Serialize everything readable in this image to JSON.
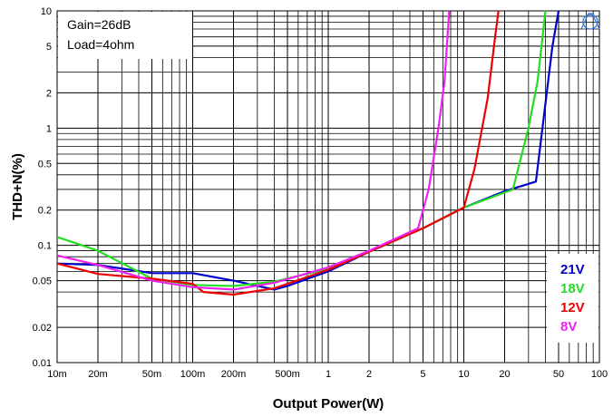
{
  "chart_data": {
    "type": "line",
    "xlabel": "Output Power(W)",
    "ylabel": "THD+N(%)",
    "xscale": "log",
    "yscale": "log",
    "xlim": [
      0.01,
      100
    ],
    "ylim": [
      0.01,
      10
    ],
    "grid": true,
    "legend_placement": "bottom-right",
    "annotations": [
      "Gain=26dB",
      "Load=4ohm"
    ],
    "x_major_ticks": [
      {
        "v": 0.01,
        "label": "10m"
      },
      {
        "v": 0.02,
        "label": "20m"
      },
      {
        "v": 0.05,
        "label": "50m"
      },
      {
        "v": 0.1,
        "label": "100m"
      },
      {
        "v": 0.2,
        "label": "200m"
      },
      {
        "v": 0.5,
        "label": "500m"
      },
      {
        "v": 1,
        "label": "1"
      },
      {
        "v": 2,
        "label": "2"
      },
      {
        "v": 5,
        "label": "5"
      },
      {
        "v": 10,
        "label": "10"
      },
      {
        "v": 20,
        "label": "20"
      },
      {
        "v": 50,
        "label": "50"
      },
      {
        "v": 100,
        "label": "100"
      }
    ],
    "y_major_ticks": [
      {
        "v": 0.01,
        "label": "0.01"
      },
      {
        "v": 0.02,
        "label": "0.02"
      },
      {
        "v": 0.05,
        "label": "0.05"
      },
      {
        "v": 0.1,
        "label": "0.1"
      },
      {
        "v": 0.2,
        "label": "0.2"
      },
      {
        "v": 0.5,
        "label": "0.5"
      },
      {
        "v": 1,
        "label": "1"
      },
      {
        "v": 2,
        "label": "2"
      },
      {
        "v": 5,
        "label": "5"
      },
      {
        "v": 10,
        "label": "10"
      }
    ],
    "series": [
      {
        "name": "21V",
        "color": "#0000cc",
        "points": [
          [
            0.01,
            0.07
          ],
          [
            0.02,
            0.068
          ],
          [
            0.05,
            0.058
          ],
          [
            0.1,
            0.058
          ],
          [
            0.2,
            0.05
          ],
          [
            0.4,
            0.042
          ],
          [
            0.5,
            0.045
          ],
          [
            1,
            0.06
          ],
          [
            2,
            0.088
          ],
          [
            5,
            0.14
          ],
          [
            10,
            0.21
          ],
          [
            20,
            0.29
          ],
          [
            34,
            0.35
          ],
          [
            38,
            1.0
          ],
          [
            45,
            5.0
          ],
          [
            50,
            10.0
          ]
        ]
      },
      {
        "name": "18V",
        "color": "#22dd22",
        "points": [
          [
            0.01,
            0.118
          ],
          [
            0.02,
            0.09
          ],
          [
            0.05,
            0.052
          ],
          [
            0.1,
            0.046
          ],
          [
            0.2,
            0.045
          ],
          [
            0.4,
            0.049
          ],
          [
            1,
            0.063
          ],
          [
            2,
            0.088
          ],
          [
            5,
            0.14
          ],
          [
            10,
            0.21
          ],
          [
            23,
            0.3
          ],
          [
            30,
            1.0
          ],
          [
            35,
            2.5
          ],
          [
            40,
            10.0
          ]
        ]
      },
      {
        "name": "12V",
        "color": "#ee0000",
        "points": [
          [
            0.01,
            0.07
          ],
          [
            0.02,
            0.057
          ],
          [
            0.05,
            0.052
          ],
          [
            0.1,
            0.047
          ],
          [
            0.12,
            0.04
          ],
          [
            0.2,
            0.038
          ],
          [
            0.4,
            0.043
          ],
          [
            1,
            0.062
          ],
          [
            2,
            0.088
          ],
          [
            5,
            0.14
          ],
          [
            10,
            0.21
          ],
          [
            12,
            0.45
          ],
          [
            15,
            1.8
          ],
          [
            17,
            6.0
          ],
          [
            18,
            10.0
          ]
        ]
      },
      {
        "name": "8V",
        "color": "#ee22ee",
        "points": [
          [
            0.01,
            0.082
          ],
          [
            0.02,
            0.068
          ],
          [
            0.05,
            0.05
          ],
          [
            0.1,
            0.044
          ],
          [
            0.2,
            0.042
          ],
          [
            0.4,
            0.048
          ],
          [
            1,
            0.065
          ],
          [
            2,
            0.09
          ],
          [
            4.6,
            0.14
          ],
          [
            5.5,
            0.3
          ],
          [
            6.5,
            1.0
          ],
          [
            7.2,
            2.5
          ],
          [
            7.8,
            10.0
          ]
        ]
      }
    ]
  }
}
